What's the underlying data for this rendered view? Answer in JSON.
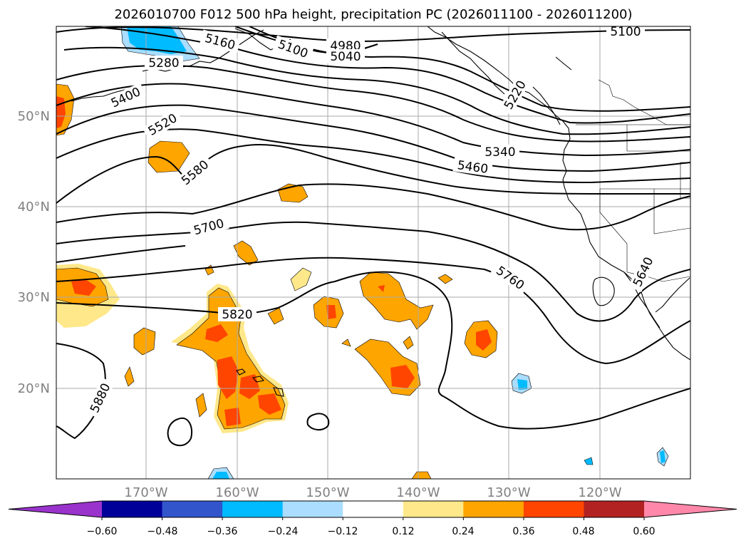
{
  "map": {
    "title": "2026010700 F012 500 hPa height, precipitation PC (2026011100 - 2026011200)",
    "lat_labels": [
      "50°N",
      "40°N",
      "30°N",
      "20°N"
    ],
    "lon_labels": [
      "170°W",
      "160°W",
      "150°W",
      "140°W",
      "130°W",
      "120°W"
    ],
    "contour_labels": [
      "5100",
      "4980",
      "5040",
      "5160",
      "5100",
      "5280",
      "5220",
      "5400",
      "5520",
      "5340",
      "5460",
      "5580",
      "5700",
      "5760",
      "5640",
      "5820",
      "5880"
    ],
    "colorbar": {
      "ticks": [
        "−0.60",
        "−0.48",
        "−0.36",
        "−0.24",
        "−0.12",
        "0.12",
        "0.24",
        "0.36",
        "0.48",
        "0.60"
      ],
      "colors": [
        "#9933cc",
        "#000099",
        "#3355cc",
        "#00bbff",
        "#aaddff",
        "#ffffff",
        "#ffe88a",
        "#ffa500",
        "#ff4500",
        "#b22222",
        "#ff88aa"
      ]
    }
  }
}
